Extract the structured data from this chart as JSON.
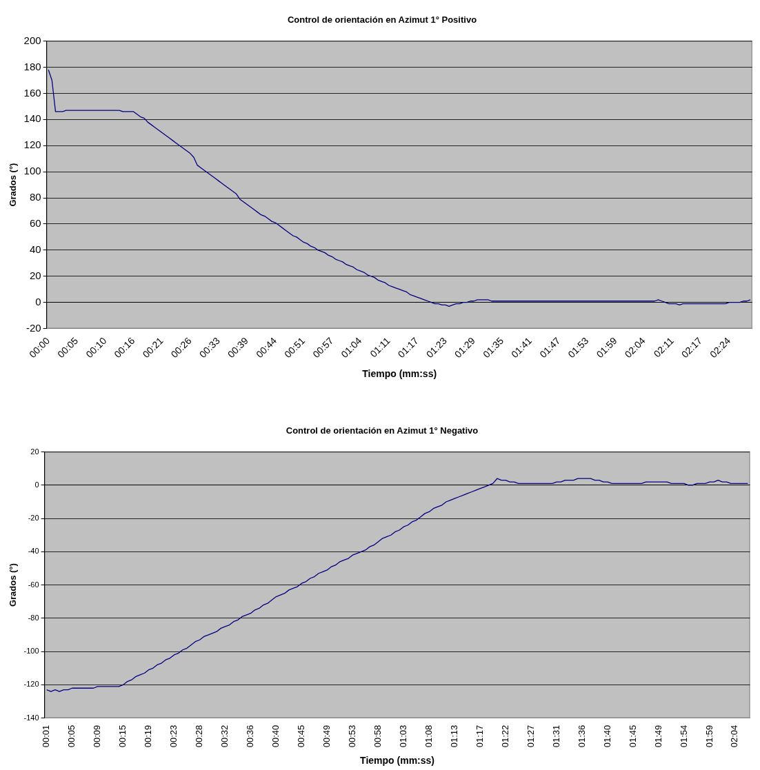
{
  "chart_data": [
    {
      "type": "line",
      "title": "Control de orientación en Azimut 1° Positivo",
      "xlabel": "Tiempo (mm:ss)",
      "ylabel": "Grados (°)",
      "categories": [
        "00:00",
        null,
        null,
        null,
        null,
        null,
        null,
        null,
        "00:05",
        null,
        null,
        null,
        null,
        null,
        null,
        null,
        "00:10",
        null,
        null,
        null,
        null,
        null,
        null,
        null,
        "00:16",
        null,
        null,
        null,
        null,
        null,
        null,
        null,
        "00:21",
        null,
        null,
        null,
        null,
        null,
        null,
        null,
        "00:26",
        null,
        null,
        null,
        null,
        null,
        null,
        null,
        "00:33",
        null,
        null,
        null,
        null,
        null,
        null,
        null,
        "00:39",
        null,
        null,
        null,
        null,
        null,
        null,
        null,
        "00:44",
        null,
        null,
        null,
        null,
        null,
        null,
        null,
        "00:51",
        null,
        null,
        null,
        null,
        null,
        null,
        null,
        "00:57",
        null,
        null,
        null,
        null,
        null,
        null,
        null,
        "01:04",
        null,
        null,
        null,
        null,
        null,
        null,
        null,
        "01:11",
        null,
        null,
        null,
        null,
        null,
        null,
        null,
        "01:17",
        null,
        null,
        null,
        null,
        null,
        null,
        null,
        "01:23",
        null,
        null,
        null,
        null,
        null,
        null,
        null,
        "01:29",
        null,
        null,
        null,
        null,
        null,
        null,
        null,
        "01:35",
        null,
        null,
        null,
        null,
        null,
        null,
        null,
        "01:41",
        null,
        null,
        null,
        null,
        null,
        null,
        null,
        "01:47",
        null,
        null,
        null,
        null,
        null,
        null,
        null,
        "01:53",
        null,
        null,
        null,
        null,
        null,
        null,
        null,
        "01:59",
        null,
        null,
        null,
        null,
        null,
        null,
        null,
        "02:04",
        null,
        null,
        null,
        null,
        null,
        null,
        null,
        "02:11",
        null,
        null,
        null,
        null,
        null,
        null,
        null,
        "02:17",
        null,
        null,
        null,
        null,
        null,
        null,
        null,
        "02:24",
        null,
        null,
        null,
        null,
        null,
        null
      ],
      "series": [
        {
          "color": "#000080",
          "values": [
            178,
            170,
            146,
            146,
            146,
            147,
            147,
            147,
            147,
            147,
            147,
            147,
            147,
            147,
            147,
            147,
            147,
            147,
            147,
            147,
            147,
            146,
            146,
            146,
            146,
            144,
            142,
            141,
            138,
            136,
            134,
            132,
            130,
            128,
            126,
            124,
            122,
            120,
            118,
            116,
            114,
            111,
            105,
            103,
            101,
            99,
            97,
            95,
            93,
            91,
            89,
            87,
            85,
            83,
            79,
            77,
            75,
            73,
            71,
            69,
            67,
            66,
            64,
            62,
            61,
            59,
            57,
            55,
            53,
            51,
            50,
            48,
            46,
            45,
            43,
            42,
            40,
            39,
            38,
            36,
            35,
            33,
            32,
            31,
            29,
            28,
            27,
            25,
            24,
            23,
            21,
            20,
            19,
            17,
            16,
            15,
            13,
            12,
            11,
            10,
            9,
            8,
            6,
            5,
            4,
            3,
            2,
            1,
            0,
            -1,
            -1,
            -2,
            -2,
            -3,
            -2,
            -1,
            -1,
            0,
            0,
            1,
            1,
            2,
            2,
            2,
            2,
            1,
            1,
            1,
            1,
            1,
            1,
            1,
            1,
            1,
            1,
            1,
            1,
            1,
            1,
            1,
            1,
            1,
            1,
            1,
            1,
            1,
            1,
            1,
            1,
            1,
            1,
            1,
            1,
            1,
            1,
            1,
            1,
            1,
            1,
            1,
            1,
            1,
            1,
            1,
            1,
            1,
            1,
            1,
            1,
            1,
            1,
            1,
            2,
            1,
            0,
            -1,
            -1,
            -1,
            -2,
            -1,
            -1,
            -1,
            -1,
            -1,
            -1,
            -1,
            -1,
            -1,
            -1,
            -1,
            -1,
            -1,
            0,
            0,
            0,
            0,
            1,
            1,
            2
          ]
        }
      ],
      "ylim": [
        -20,
        200
      ],
      "yticks": [
        -20,
        0,
        20,
        40,
        60,
        80,
        100,
        120,
        140,
        160,
        180,
        200
      ],
      "grid": "y",
      "legend": false,
      "marker": "none"
    },
    {
      "type": "line",
      "title": "Control de orientación en Azimut 1° Negativo",
      "xlabel": "Tiempo (mm:ss)",
      "ylabel": "Grados (°)",
      "categories": [
        "00:01",
        null,
        null,
        null,
        null,
        null,
        "00:05",
        null,
        null,
        null,
        null,
        null,
        "00:09",
        null,
        null,
        null,
        null,
        null,
        "00:15",
        null,
        null,
        null,
        null,
        null,
        "00:19",
        null,
        null,
        null,
        null,
        null,
        "00:23",
        null,
        null,
        null,
        null,
        null,
        "00:28",
        null,
        null,
        null,
        null,
        null,
        "00:32",
        null,
        null,
        null,
        null,
        null,
        "00:36",
        null,
        null,
        null,
        null,
        null,
        "00:40",
        null,
        null,
        null,
        null,
        null,
        "00:45",
        null,
        null,
        null,
        null,
        null,
        "00:49",
        null,
        null,
        null,
        null,
        null,
        "00:53",
        null,
        null,
        null,
        null,
        null,
        "00:58",
        null,
        null,
        null,
        null,
        null,
        "01:03",
        null,
        null,
        null,
        null,
        null,
        "01:08",
        null,
        null,
        null,
        null,
        null,
        "01:13",
        null,
        null,
        null,
        null,
        null,
        "01:17",
        null,
        null,
        null,
        null,
        null,
        "01:22",
        null,
        null,
        null,
        null,
        null,
        "01:27",
        null,
        null,
        null,
        null,
        null,
        "01:31",
        null,
        null,
        null,
        null,
        null,
        "01:36",
        null,
        null,
        null,
        null,
        null,
        "01:40",
        null,
        null,
        null,
        null,
        null,
        "01:45",
        null,
        null,
        null,
        null,
        null,
        "01:49",
        null,
        null,
        null,
        null,
        null,
        "01:54",
        null,
        null,
        null,
        null,
        null,
        "01:59",
        null,
        null,
        null,
        null,
        null,
        "02:04",
        null,
        null,
        null
      ],
      "series": [
        {
          "color": "#000080",
          "values": [
            -123,
            -124,
            -123,
            -124,
            -123,
            -123,
            -122,
            -122,
            -122,
            -122,
            -122,
            -122,
            -121,
            -121,
            -121,
            -121,
            -121,
            -121,
            -120,
            -118,
            -117,
            -115,
            -114,
            -113,
            -111,
            -110,
            -108,
            -107,
            -105,
            -104,
            -102,
            -101,
            -99,
            -98,
            -96,
            -94,
            -93,
            -91,
            -90,
            -89,
            -88,
            -86,
            -85,
            -84,
            -82,
            -81,
            -79,
            -78,
            -77,
            -75,
            -74,
            -72,
            -71,
            -69,
            -67,
            -66,
            -65,
            -63,
            -62,
            -61,
            -59,
            -58,
            -56,
            -55,
            -53,
            -52,
            -51,
            -49,
            -48,
            -46,
            -45,
            -44,
            -42,
            -41,
            -40,
            -39,
            -37,
            -36,
            -34,
            -32,
            -31,
            -30,
            -28,
            -27,
            -25,
            -24,
            -22,
            -21,
            -19,
            -17,
            -16,
            -14,
            -13,
            -12,
            -10,
            -9,
            -8,
            -7,
            -6,
            -5,
            -4,
            -3,
            -2,
            -1,
            0,
            1,
            4,
            3,
            3,
            2,
            2,
            1,
            1,
            1,
            1,
            1,
            1,
            1,
            1,
            1,
            2,
            2,
            3,
            3,
            3,
            4,
            4,
            4,
            4,
            3,
            3,
            2,
            2,
            1,
            1,
            1,
            1,
            1,
            1,
            1,
            1,
            2,
            2,
            2,
            2,
            2,
            2,
            1,
            1,
            1,
            1,
            0,
            0,
            1,
            1,
            1,
            2,
            2,
            3,
            2,
            2,
            1,
            1,
            1,
            1,
            1
          ]
        }
      ],
      "ylim": [
        -140,
        20
      ],
      "yticks": [
        -140,
        -120,
        -100,
        -80,
        -60,
        -40,
        -20,
        0,
        20
      ],
      "grid": "y",
      "legend": false,
      "marker": "none"
    }
  ]
}
